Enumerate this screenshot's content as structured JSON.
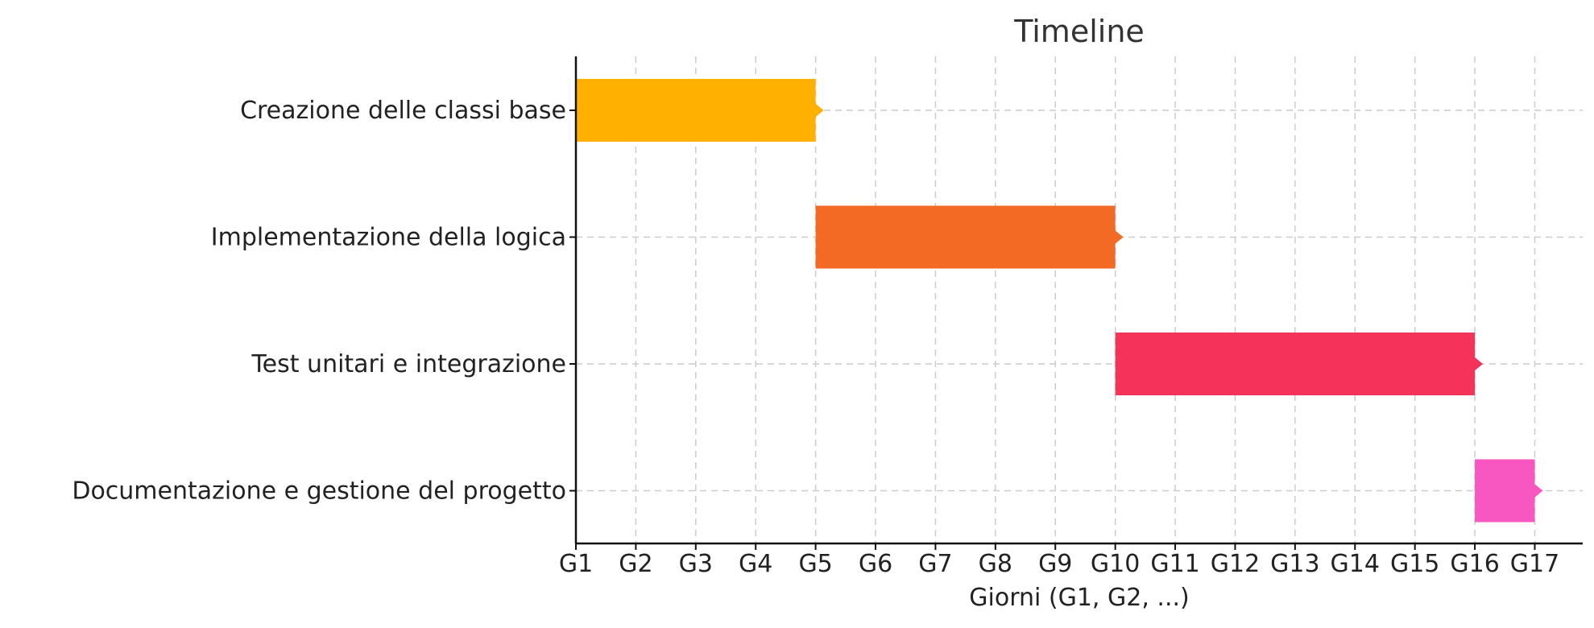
{
  "chart_data": {
    "type": "bar",
    "subtype": "gantt",
    "title": "Timeline",
    "xlabel": "Giorni (G1, G2, ...)",
    "ylabel": "",
    "x_ticks": [
      "G1",
      "G2",
      "G3",
      "G4",
      "G5",
      "G6",
      "G7",
      "G8",
      "G9",
      "G10",
      "G11",
      "G12",
      "G13",
      "G14",
      "G15",
      "G16",
      "G17"
    ],
    "xlim": [
      1,
      17.8
    ],
    "grid": true,
    "tasks": [
      {
        "label": "Creazione delle classi base",
        "start": 1,
        "end": 5,
        "color": "#FFB000"
      },
      {
        "label": "Implementazione della logica",
        "start": 5,
        "end": 10,
        "color": "#F26A24"
      },
      {
        "label": "Test unitari e integrazione",
        "start": 10,
        "end": 16,
        "color": "#F5335A"
      },
      {
        "label": "Documentazione e gestione del progetto",
        "start": 16,
        "end": 17,
        "color": "#F857C1"
      }
    ]
  }
}
